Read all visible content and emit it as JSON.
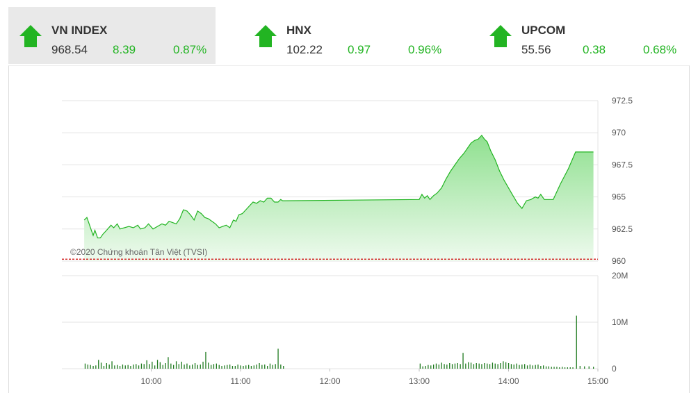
{
  "indices": [
    {
      "name": "VN INDEX",
      "value": "968.54",
      "change": "8.39",
      "percent": "0.87%",
      "active": true
    },
    {
      "name": "HNX",
      "value": "102.22",
      "change": "0.97",
      "percent": "0.96%",
      "active": false
    },
    {
      "name": "UPCOM",
      "value": "55.56",
      "change": "0.38",
      "percent": "0.68%",
      "active": false
    }
  ],
  "colors": {
    "up": "#22b422",
    "fill_top": "#8fe08f",
    "fill_bottom": "#eefaee",
    "reference": "#cc0000",
    "volume": "#1e7a1e"
  },
  "watermark": "©2020 Chứng khoán Tân Việt (TVSI)",
  "chart_data": {
    "type": "area",
    "price": {
      "ylim": [
        960,
        972.5
      ],
      "y_ticks": [
        "972.5",
        "970",
        "967.5",
        "965",
        "962.5",
        "960"
      ],
      "reference": 960.15,
      "points": [
        [
          9.25,
          963.2
        ],
        [
          9.28,
          963.4
        ],
        [
          9.3,
          963.0
        ],
        [
          9.32,
          962.6
        ],
        [
          9.35,
          962.0
        ],
        [
          9.37,
          962.4
        ],
        [
          9.4,
          961.8
        ],
        [
          9.43,
          961.8
        ],
        [
          9.46,
          962.1
        ],
        [
          9.5,
          962.4
        ],
        [
          9.55,
          962.8
        ],
        [
          9.58,
          962.6
        ],
        [
          9.62,
          962.9
        ],
        [
          9.65,
          962.5
        ],
        [
          9.7,
          962.6
        ],
        [
          9.75,
          962.7
        ],
        [
          9.8,
          962.6
        ],
        [
          9.85,
          962.8
        ],
        [
          9.88,
          962.5
        ],
        [
          9.93,
          962.6
        ],
        [
          9.97,
          962.9
        ],
        [
          10.02,
          962.5
        ],
        [
          10.07,
          962.7
        ],
        [
          10.12,
          962.9
        ],
        [
          10.16,
          962.8
        ],
        [
          10.2,
          963.1
        ],
        [
          10.24,
          963.0
        ],
        [
          10.28,
          962.9
        ],
        [
          10.32,
          963.3
        ],
        [
          10.36,
          964.0
        ],
        [
          10.4,
          963.9
        ],
        [
          10.44,
          963.6
        ],
        [
          10.48,
          963.2
        ],
        [
          10.52,
          963.9
        ],
        [
          10.56,
          963.7
        ],
        [
          10.6,
          963.4
        ],
        [
          10.64,
          963.3
        ],
        [
          10.68,
          963.1
        ],
        [
          10.72,
          962.9
        ],
        [
          10.76,
          962.6
        ],
        [
          10.8,
          962.7
        ],
        [
          10.84,
          962.8
        ],
        [
          10.88,
          962.6
        ],
        [
          10.92,
          963.2
        ],
        [
          10.95,
          963.1
        ],
        [
          10.98,
          963.6
        ],
        [
          11.02,
          963.7
        ],
        [
          11.06,
          964.0
        ],
        [
          11.1,
          964.3
        ],
        [
          11.14,
          964.6
        ],
        [
          11.18,
          964.5
        ],
        [
          11.22,
          964.7
        ],
        [
          11.26,
          964.6
        ],
        [
          11.3,
          964.9
        ],
        [
          11.34,
          964.9
        ],
        [
          11.38,
          964.6
        ],
        [
          11.42,
          964.6
        ],
        [
          11.45,
          964.8
        ],
        [
          11.47,
          964.7
        ],
        [
          11.5,
          964.7
        ],
        [
          13.0,
          964.8
        ],
        [
          13.03,
          965.2
        ],
        [
          13.06,
          964.9
        ],
        [
          13.09,
          965.1
        ],
        [
          13.12,
          964.8
        ],
        [
          13.16,
          965.1
        ],
        [
          13.2,
          965.3
        ],
        [
          13.25,
          965.7
        ],
        [
          13.3,
          966.4
        ],
        [
          13.35,
          967.0
        ],
        [
          13.4,
          967.5
        ],
        [
          13.45,
          968.0
        ],
        [
          13.5,
          968.4
        ],
        [
          13.55,
          968.9
        ],
        [
          13.58,
          969.2
        ],
        [
          13.62,
          969.4
        ],
        [
          13.66,
          969.5
        ],
        [
          13.7,
          969.8
        ],
        [
          13.73,
          969.5
        ],
        [
          13.76,
          969.3
        ],
        [
          13.8,
          968.6
        ],
        [
          13.85,
          967.9
        ],
        [
          13.9,
          967.0
        ],
        [
          13.95,
          966.3
        ],
        [
          14.0,
          965.7
        ],
        [
          14.05,
          965.1
        ],
        [
          14.1,
          964.5
        ],
        [
          14.15,
          964.1
        ],
        [
          14.2,
          964.7
        ],
        [
          14.25,
          964.8
        ],
        [
          14.3,
          965.0
        ],
        [
          14.33,
          964.9
        ],
        [
          14.36,
          965.2
        ],
        [
          14.4,
          964.8
        ],
        [
          14.45,
          964.8
        ],
        [
          14.5,
          964.8
        ],
        [
          14.58,
          966.0
        ],
        [
          14.67,
          967.2
        ],
        [
          14.75,
          968.5
        ],
        [
          14.8,
          968.5
        ],
        [
          14.85,
          968.5
        ],
        [
          14.95,
          968.5
        ]
      ]
    },
    "volume": {
      "ylim": [
        0,
        20
      ],
      "y_ticks": [
        "20M",
        "10M",
        "0"
      ],
      "bars": [
        [
          9.26,
          1.1
        ],
        [
          9.29,
          0.9
        ],
        [
          9.32,
          0.8
        ],
        [
          9.35,
          0.6
        ],
        [
          9.38,
          0.7
        ],
        [
          9.41,
          1.9
        ],
        [
          9.44,
          1.3
        ],
        [
          9.47,
          0.6
        ],
        [
          9.5,
          1.2
        ],
        [
          9.53,
          0.9
        ],
        [
          9.56,
          1.6
        ],
        [
          9.59,
          0.7
        ],
        [
          9.62,
          0.8
        ],
        [
          9.65,
          0.6
        ],
        [
          9.68,
          0.9
        ],
        [
          9.71,
          0.7
        ],
        [
          9.74,
          0.8
        ],
        [
          9.77,
          0.6
        ],
        [
          9.8,
          0.9
        ],
        [
          9.83,
          1.0
        ],
        [
          9.86,
          0.7
        ],
        [
          9.89,
          1.1
        ],
        [
          9.92,
          1.0
        ],
        [
          9.95,
          1.8
        ],
        [
          9.98,
          1.0
        ],
        [
          10.01,
          1.5
        ],
        [
          10.04,
          0.7
        ],
        [
          10.07,
          1.9
        ],
        [
          10.1,
          1.4
        ],
        [
          10.13,
          0.8
        ],
        [
          10.16,
          1.2
        ],
        [
          10.19,
          2.5
        ],
        [
          10.22,
          1.1
        ],
        [
          10.25,
          0.8
        ],
        [
          10.28,
          1.6
        ],
        [
          10.31,
          1.0
        ],
        [
          10.34,
          1.5
        ],
        [
          10.37,
          0.9
        ],
        [
          10.4,
          1.1
        ],
        [
          10.43,
          0.7
        ],
        [
          10.46,
          0.9
        ],
        [
          10.49,
          1.2
        ],
        [
          10.52,
          0.8
        ],
        [
          10.55,
          0.9
        ],
        [
          10.58,
          1.5
        ],
        [
          10.61,
          3.6
        ],
        [
          10.64,
          1.3
        ],
        [
          10.67,
          0.8
        ],
        [
          10.7,
          1.0
        ],
        [
          10.73,
          1.1
        ],
        [
          10.76,
          0.8
        ],
        [
          10.79,
          0.6
        ],
        [
          10.82,
          0.7
        ],
        [
          10.85,
          0.8
        ],
        [
          10.88,
          0.9
        ],
        [
          10.91,
          0.6
        ],
        [
          10.94,
          0.6
        ],
        [
          10.97,
          0.9
        ],
        [
          11.0,
          0.7
        ],
        [
          11.03,
          0.6
        ],
        [
          11.06,
          0.7
        ],
        [
          11.09,
          0.8
        ],
        [
          11.12,
          0.6
        ],
        [
          11.15,
          0.7
        ],
        [
          11.18,
          0.9
        ],
        [
          11.21,
          1.2
        ],
        [
          11.24,
          0.8
        ],
        [
          11.27,
          0.9
        ],
        [
          11.3,
          0.6
        ],
        [
          11.33,
          1.1
        ],
        [
          11.36,
          0.8
        ],
        [
          11.39,
          1.0
        ],
        [
          11.42,
          4.3
        ],
        [
          11.45,
          0.9
        ],
        [
          11.48,
          0.6
        ],
        [
          13.01,
          1.1
        ],
        [
          13.04,
          0.5
        ],
        [
          13.07,
          0.6
        ],
        [
          13.1,
          0.8
        ],
        [
          13.13,
          0.7
        ],
        [
          13.16,
          0.9
        ],
        [
          13.19,
          1.1
        ],
        [
          13.22,
          0.9
        ],
        [
          13.25,
          1.3
        ],
        [
          13.28,
          1.0
        ],
        [
          13.31,
          0.9
        ],
        [
          13.34,
          1.2
        ],
        [
          13.37,
          1.0
        ],
        [
          13.4,
          1.1
        ],
        [
          13.43,
          1.2
        ],
        [
          13.46,
          1.0
        ],
        [
          13.49,
          3.4
        ],
        [
          13.52,
          1.1
        ],
        [
          13.55,
          1.4
        ],
        [
          13.58,
          1.3
        ],
        [
          13.61,
          1.0
        ],
        [
          13.64,
          1.2
        ],
        [
          13.67,
          1.1
        ],
        [
          13.7,
          1.0
        ],
        [
          13.73,
          1.2
        ],
        [
          13.76,
          1.1
        ],
        [
          13.79,
          1.0
        ],
        [
          13.82,
          1.3
        ],
        [
          13.85,
          1.1
        ],
        [
          13.88,
          1.0
        ],
        [
          13.91,
          1.2
        ],
        [
          13.94,
          1.6
        ],
        [
          13.97,
          1.4
        ],
        [
          14.0,
          1.2
        ],
        [
          14.03,
          1.0
        ],
        [
          14.06,
          0.9
        ],
        [
          14.09,
          1.1
        ],
        [
          14.12,
          0.8
        ],
        [
          14.15,
          0.9
        ],
        [
          14.18,
          1.0
        ],
        [
          14.21,
          0.7
        ],
        [
          14.24,
          0.9
        ],
        [
          14.27,
          0.7
        ],
        [
          14.3,
          0.8
        ],
        [
          14.33,
          0.9
        ],
        [
          14.36,
          0.6
        ],
        [
          14.39,
          0.7
        ],
        [
          14.42,
          0.5
        ],
        [
          14.45,
          0.5
        ],
        [
          14.48,
          0.4
        ],
        [
          14.51,
          0.4
        ],
        [
          14.54,
          0.4
        ],
        [
          14.57,
          0.3
        ],
        [
          14.6,
          0.4
        ],
        [
          14.63,
          0.3
        ],
        [
          14.66,
          0.3
        ],
        [
          14.69,
          0.3
        ],
        [
          14.72,
          0.3
        ],
        [
          14.76,
          11.4
        ],
        [
          14.8,
          0.6
        ],
        [
          14.85,
          0.5
        ],
        [
          14.9,
          0.5
        ],
        [
          14.95,
          0.4
        ]
      ]
    },
    "x_ticks": [
      {
        "x": 10,
        "label": "10:00"
      },
      {
        "x": 11,
        "label": "11:00"
      },
      {
        "x": 12,
        "label": "12:00"
      },
      {
        "x": 13,
        "label": "13:00"
      },
      {
        "x": 14,
        "label": "14:00"
      },
      {
        "x": 15,
        "label": "15:00"
      }
    ],
    "xlim": [
      9.0,
      15.0
    ],
    "grid": true
  }
}
